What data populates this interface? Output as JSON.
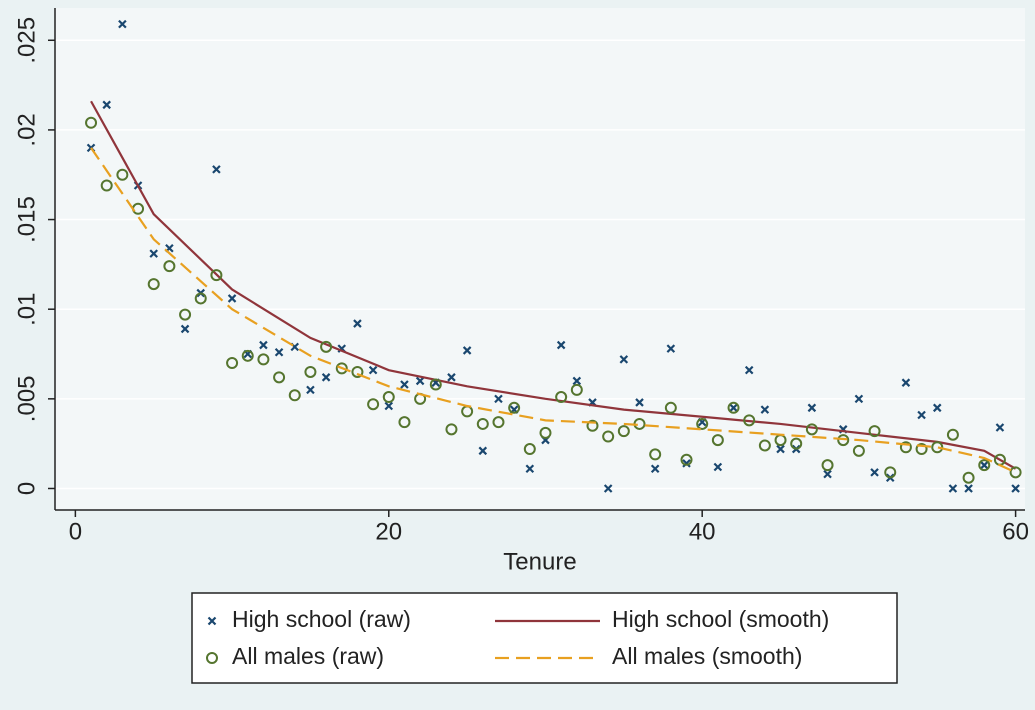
{
  "chart_data": {
    "type": "scatter",
    "x_label": "Tenure",
    "xlim": [
      -1.3,
      60.6
    ],
    "xticks": [
      0,
      20,
      40,
      60
    ],
    "ylim": [
      -0.0012,
      0.0268
    ],
    "yticks": [
      {
        "value": 0,
        "label": "0"
      },
      {
        "value": 0.005,
        "label": ".005"
      },
      {
        "value": 0.01,
        "label": ".01"
      },
      {
        "value": 0.015,
        "label": ".015"
      },
      {
        "value": 0.02,
        "label": ".02"
      },
      {
        "value": 0.025,
        "label": ".025"
      }
    ],
    "grid": true,
    "legend": "bottom",
    "series": [
      {
        "name": "High school (raw)",
        "color": "#1a476f",
        "style": "x",
        "x": [
          1,
          2,
          3,
          4,
          5,
          6,
          7,
          8,
          9,
          10,
          11,
          12,
          13,
          14,
          15,
          16,
          17,
          18,
          19,
          20,
          21,
          22,
          23,
          24,
          25,
          26,
          27,
          28,
          29,
          30,
          31,
          32,
          33,
          34,
          35,
          36,
          37,
          38,
          39,
          40,
          41,
          42,
          43,
          44,
          45,
          46,
          47,
          48,
          49,
          50,
          51,
          52,
          53,
          54,
          55,
          56,
          57,
          58,
          59,
          60
        ],
        "values": [
          0.019,
          0.0214,
          0.0259,
          0.0169,
          0.0131,
          0.0134,
          0.0089,
          0.0109,
          0.0178,
          0.0106,
          0.0075,
          0.008,
          0.0076,
          0.0079,
          0.0055,
          0.0062,
          0.0078,
          0.0092,
          0.0066,
          0.0046,
          0.0058,
          0.006,
          0.0059,
          0.0062,
          0.0077,
          0.0021,
          0.005,
          0.0044,
          0.0011,
          0.0027,
          0.008,
          0.006,
          0.0048,
          0,
          0.0072,
          0.0048,
          0.0011,
          0.0078,
          0.0014,
          0.0037,
          0.0012,
          0.0045,
          0.0066,
          0.0044,
          0.0022,
          0.0022,
          0.0045,
          0.0008,
          0.0033,
          0.005,
          0.0009,
          0.0006,
          0.0059,
          0.0041,
          0.0045,
          0,
          0,
          0.0013,
          0.0034,
          0
        ]
      },
      {
        "name": "High school (smooth)",
        "color": "#90353b",
        "style": "line",
        "x": [
          1,
          5,
          10,
          15,
          20,
          25,
          30,
          35,
          40,
          45,
          50,
          55,
          58,
          60
        ],
        "values": [
          0.0216,
          0.0153,
          0.0111,
          0.0084,
          0.0066,
          0.0057,
          0.005,
          0.0044,
          0.004,
          0.0036,
          0.0031,
          0.0026,
          0.0021,
          0.0011
        ]
      },
      {
        "name": "All males (raw)",
        "color": "#55752f",
        "style": "circle",
        "x": [
          1,
          2,
          3,
          4,
          5,
          6,
          7,
          8,
          9,
          10,
          11,
          12,
          13,
          14,
          15,
          16,
          17,
          18,
          19,
          20,
          21,
          22,
          23,
          24,
          25,
          26,
          27,
          28,
          29,
          30,
          31,
          32,
          33,
          34,
          35,
          36,
          37,
          38,
          39,
          40,
          41,
          42,
          43,
          44,
          45,
          46,
          47,
          48,
          49,
          50,
          51,
          52,
          53,
          54,
          55,
          56,
          57,
          58,
          59,
          60
        ],
        "values": [
          0.0204,
          0.0169,
          0.0175,
          0.0156,
          0.0114,
          0.0124,
          0.0097,
          0.0106,
          0.0119,
          0.007,
          0.0074,
          0.0072,
          0.0062,
          0.0052,
          0.0065,
          0.0079,
          0.0067,
          0.0065,
          0.0047,
          0.0051,
          0.0037,
          0.005,
          0.0058,
          0.0033,
          0.0043,
          0.0036,
          0.0037,
          0.0045,
          0.0022,
          0.0031,
          0.0051,
          0.0055,
          0.0035,
          0.0029,
          0.0032,
          0.0036,
          0.0019,
          0.0045,
          0.0016,
          0.0036,
          0.0027,
          0.0045,
          0.0038,
          0.0024,
          0.0027,
          0.0025,
          0.0033,
          0.0013,
          0.0027,
          0.0021,
          0.0032,
          0.0009,
          0.0023,
          0.0022,
          0.0023,
          0.003,
          0.0006,
          0.0013,
          0.0016,
          0.0009
        ]
      },
      {
        "name": "All males (smooth)",
        "color": "#e8a020",
        "style": "dash",
        "x": [
          1,
          5,
          10,
          15,
          20,
          25,
          30,
          35,
          40,
          45,
          50,
          55,
          58,
          60
        ],
        "values": [
          0.019,
          0.0139,
          0.01,
          0.0074,
          0.0057,
          0.0046,
          0.0038,
          0.0036,
          0.0033,
          0.003,
          0.0027,
          0.0023,
          0.0017,
          0.0009
        ]
      }
    ]
  }
}
